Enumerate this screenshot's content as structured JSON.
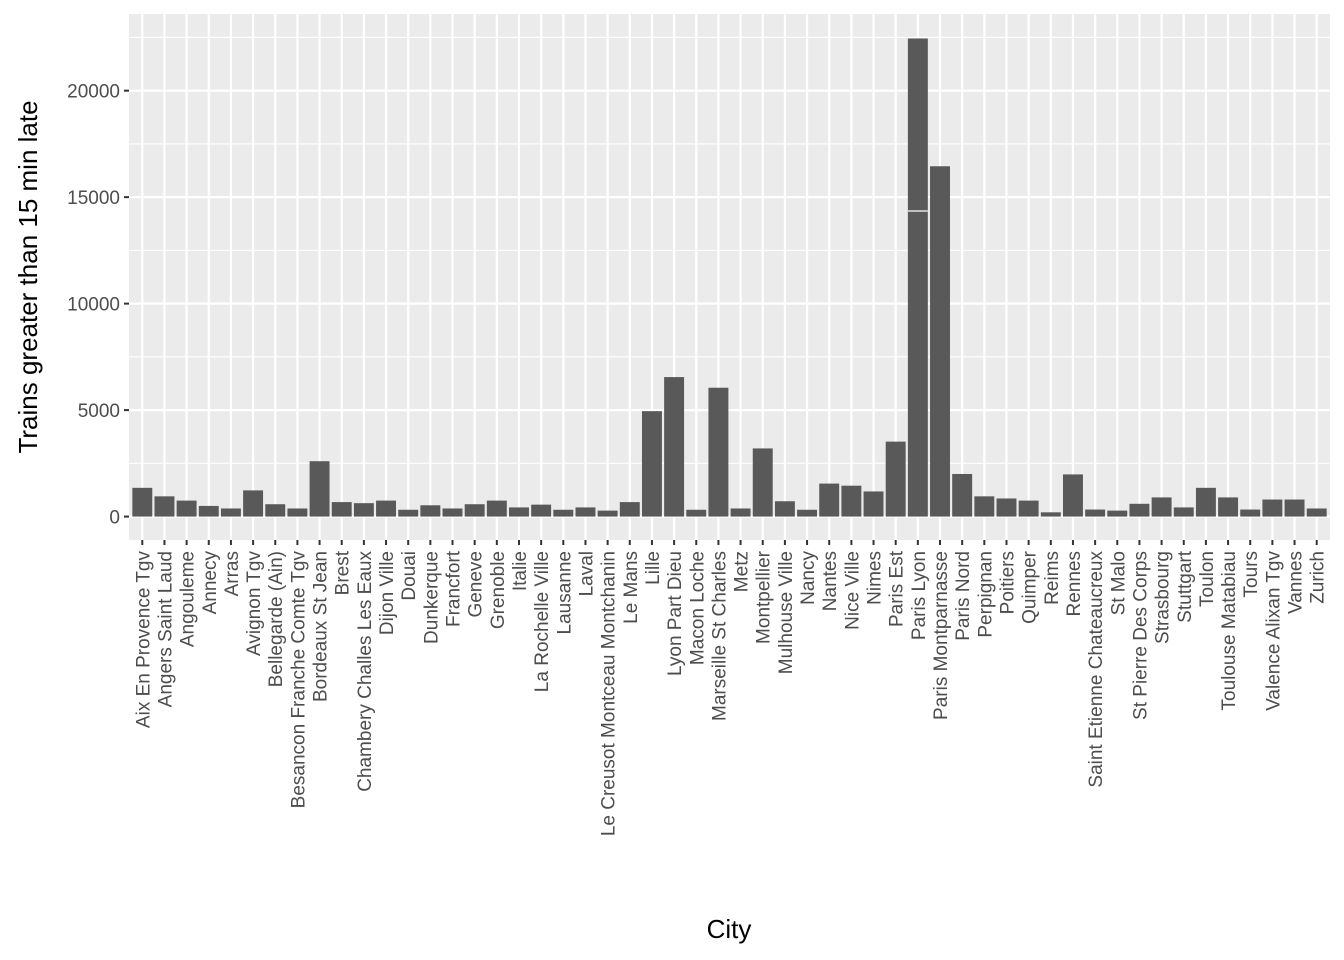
{
  "chart_data": {
    "type": "bar",
    "title": "",
    "xlabel": "City",
    "ylabel": "Trains greater than 15 min late",
    "ylim": [
      -1100,
      23600
    ],
    "yticks": [
      0,
      5000,
      10000,
      15000,
      20000
    ],
    "grid": true,
    "legend": "none",
    "colors": {
      "panel": "#ebebeb",
      "grid": "#ffffff",
      "bar": "#595959",
      "tick_text": "#4d4d4d",
      "tick_mark": "#333333",
      "title_text": "#000000"
    },
    "categories": [
      "Aix En Provence Tgv",
      "Angers Saint Laud",
      "Angouleme",
      "Annecy",
      "Arras",
      "Avignon Tgv",
      "Bellegarde (Ain)",
      "Besancon Franche Comte Tgv",
      "Bordeaux St Jean",
      "Brest",
      "Chambery Challes Les Eaux",
      "Dijon Ville",
      "Douai",
      "Dunkerque",
      "Francfort",
      "Geneve",
      "Grenoble",
      "Italie",
      "La Rochelle Ville",
      "Lausanne",
      "Laval",
      "Le Creusot Montceau Montchanin",
      "Le Mans",
      "Lille",
      "Lyon Part Dieu",
      "Macon Loche",
      "Marseille St Charles",
      "Metz",
      "Montpellier",
      "Mulhouse Ville",
      "Nancy",
      "Nantes",
      "Nice Ville",
      "Nimes",
      "Paris Est",
      "Paris Lyon",
      "Paris Montparnasse",
      "Paris Nord",
      "Perpignan",
      "Poitiers",
      "Quimper",
      "Reims",
      "Rennes",
      "Saint Etienne Chateaucreux",
      "St Malo",
      "St Pierre Des Corps",
      "Strasbourg",
      "Stuttgart",
      "Toulon",
      "Toulouse Matabiau",
      "Tours",
      "Valence Alixan Tgv",
      "Vannes",
      "Zurich"
    ],
    "values": [
      1350,
      950,
      750,
      500,
      380,
      1230,
      580,
      380,
      2600,
      680,
      630,
      750,
      320,
      530,
      380,
      580,
      750,
      430,
      560,
      320,
      430,
      280,
      680,
      4950,
      6550,
      320,
      6050,
      380,
      3200,
      720,
      320,
      1550,
      1450,
      1180,
      3520,
      22450,
      16450,
      2000,
      950,
      850,
      750,
      200,
      1980,
      330,
      280,
      600,
      900,
      430,
      1350,
      900,
      330,
      800,
      800,
      380
    ],
    "stack_boundaries": [
      {
        "category": "Paris Lyon",
        "at": 14350
      }
    ]
  }
}
